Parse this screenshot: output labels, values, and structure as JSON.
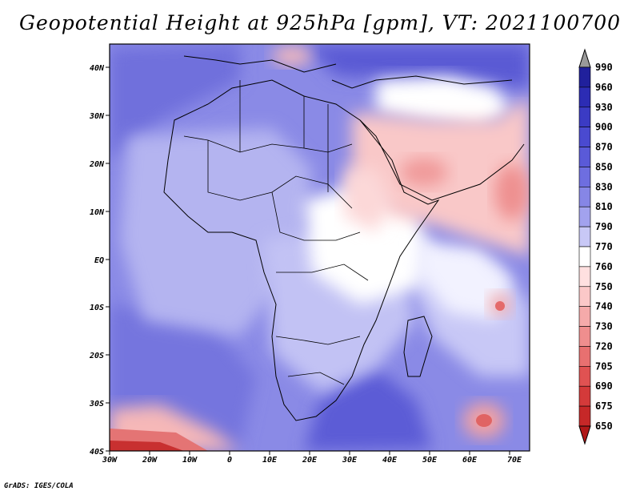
{
  "title": "Geopotential Height at 925hPa [gpm], VT: 2021100700",
  "footer": "GrADS: IGES/COLA",
  "map": {
    "lon_labels": [
      "30W",
      "20W",
      "10W",
      "0",
      "10E",
      "20E",
      "30E",
      "40E",
      "50E",
      "60E",
      "70E"
    ],
    "lat_labels": [
      "40N",
      "30N",
      "20N",
      "10N",
      "EQ",
      "10S",
      "20S",
      "30S",
      "40S"
    ]
  },
  "colorbar": {
    "levels": [
      "990",
      "960",
      "930",
      "900",
      "870",
      "850",
      "830",
      "810",
      "790",
      "770",
      "760",
      "750",
      "740",
      "730",
      "720",
      "705",
      "690",
      "675",
      "650"
    ],
    "colors": [
      "#9a9a9a",
      "#20209c",
      "#2c2cb4",
      "#3b3bc4",
      "#4a4ad0",
      "#5a5ad8",
      "#6e6ee0",
      "#8686e6",
      "#a2a2ee",
      "#c8c8f6",
      "#ffffff",
      "#ffe0e0",
      "#fbc8c8",
      "#f5aaaa",
      "#ef8e8e",
      "#e87070",
      "#e05252",
      "#d43a3a",
      "#c62828",
      "#b01818"
    ]
  }
}
